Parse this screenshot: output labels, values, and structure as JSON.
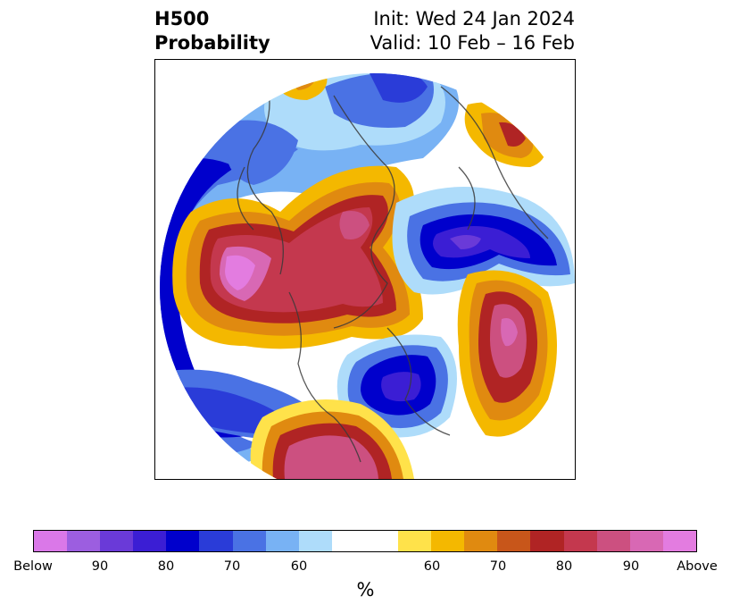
{
  "title": {
    "left_line1": "H500",
    "left_line2": "Probability",
    "init": "Init: Wed 24 Jan 2024",
    "valid": "Valid: 10 Feb – 16 Feb"
  },
  "colorbar": {
    "colors": [
      "#da78e8",
      "#9c5ee0",
      "#6a3ad8",
      "#3b1ed4",
      "#0000cc",
      "#2a3cd8",
      "#4a72e4",
      "#78b2f4",
      "#aedcfa",
      "#ffffff",
      "#ffffff",
      "#ffe24a",
      "#f4b800",
      "#e08a10",
      "#c8561a",
      "#b02424",
      "#c4384e",
      "#cc5080",
      "#d868b4",
      "#e37ce0"
    ],
    "ticks": [
      "Below",
      "90",
      "80",
      "70",
      "60",
      "60",
      "70",
      "80",
      "90",
      "Above"
    ],
    "unit": "%"
  },
  "legend_meaning": {
    "left": "Below",
    "right": "Above"
  }
}
